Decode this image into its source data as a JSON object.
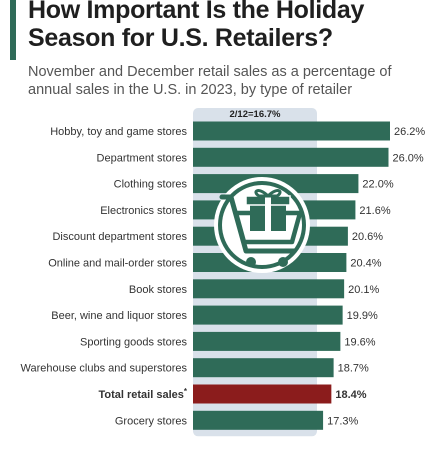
{
  "header": {
    "title": "How Important Is the Holiday Season for U.S. Retailers?",
    "subtitle": "November and December retail sales as a percentage of annual sales in the U.S. in 2023, by type of retailer"
  },
  "colors": {
    "bar": "#2f6b58",
    "highlight_bar": "#8b1c1c",
    "reference_band": "#d9e1ea",
    "accent": "#2f6b58"
  },
  "illustration": {
    "icon": "shopping-cart-gift-icon"
  },
  "chart_data": {
    "type": "bar",
    "orientation": "horizontal",
    "categories": [
      "Hobby, toy and game stores",
      "Department stores",
      "Clothing stores",
      "Electronics stores",
      "Discount department stores",
      "Online and mail-order stores",
      "Book stores",
      "Beer, wine and liquor stores",
      "Sporting goods stores",
      "Warehouse clubs and superstores",
      "Total retail sales",
      "Grocery stores"
    ],
    "category_suffixes": [
      "",
      "",
      "",
      "",
      "",
      "",
      "",
      "",
      "",
      "",
      "*",
      ""
    ],
    "values": [
      26.2,
      26.0,
      22.0,
      21.6,
      20.6,
      20.4,
      20.1,
      19.9,
      19.6,
      18.7,
      18.4,
      17.3
    ],
    "value_labels": [
      "26.2%",
      "26.0%",
      "22.0%",
      "21.6%",
      "20.6%",
      "20.4%",
      "20.1%",
      "19.9%",
      "19.6%",
      "18.7%",
      "18.4%",
      "17.3%"
    ],
    "highlight_category": "Total retail sales",
    "reference_value": 16.7,
    "reference_label": "2/12=16.7%",
    "xlim": [
      0,
      26.2
    ],
    "title": "How Important Is the Holiday Season for U.S. Retailers?",
    "xlabel": "",
    "ylabel": "",
    "grid": false,
    "legend": "none"
  }
}
